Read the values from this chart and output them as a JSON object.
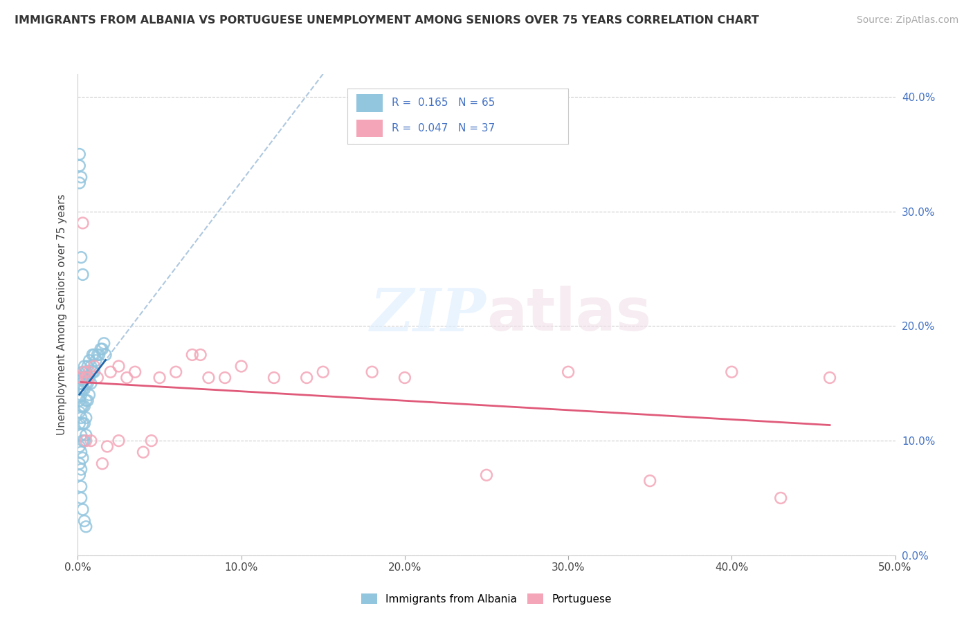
{
  "title": "IMMIGRANTS FROM ALBANIA VS PORTUGUESE UNEMPLOYMENT AMONG SENIORS OVER 75 YEARS CORRELATION CHART",
  "source": "Source: ZipAtlas.com",
  "ylabel": "Unemployment Among Seniors over 75 years",
  "xlim": [
    0.0,
    0.5
  ],
  "ylim": [
    0.0,
    0.42
  ],
  "xticks": [
    0.0,
    0.1,
    0.2,
    0.3,
    0.4,
    0.5
  ],
  "yticks": [
    0.0,
    0.1,
    0.2,
    0.3,
    0.4
  ],
  "color_albania": "#92c5de",
  "color_portuguese": "#f4a6b8",
  "trendline_albania_color": "#2166ac",
  "trendline_portuguese_color": "#e05a7a",
  "dashed_color": "#aec8e0",
  "watermark": "ZIPatlas",
  "albania_x": [
    0.001,
    0.001,
    0.001,
    0.001,
    0.001,
    0.001,
    0.001,
    0.001,
    0.002,
    0.002,
    0.002,
    0.002,
    0.002,
    0.002,
    0.002,
    0.002,
    0.002,
    0.003,
    0.003,
    0.003,
    0.003,
    0.003,
    0.003,
    0.003,
    0.004,
    0.004,
    0.004,
    0.004,
    0.004,
    0.004,
    0.005,
    0.005,
    0.005,
    0.005,
    0.005,
    0.006,
    0.006,
    0.006,
    0.007,
    0.007,
    0.007,
    0.008,
    0.008,
    0.009,
    0.009,
    0.01,
    0.01,
    0.011,
    0.012,
    0.013,
    0.014,
    0.015,
    0.016,
    0.017,
    0.002,
    0.003,
    0.004,
    0.005,
    0.001,
    0.002,
    0.001,
    0.001,
    0.002,
    0.003
  ],
  "albania_y": [
    0.155,
    0.145,
    0.135,
    0.125,
    0.115,
    0.095,
    0.08,
    0.07,
    0.155,
    0.15,
    0.14,
    0.13,
    0.12,
    0.105,
    0.09,
    0.075,
    0.06,
    0.16,
    0.155,
    0.145,
    0.13,
    0.115,
    0.1,
    0.085,
    0.165,
    0.155,
    0.145,
    0.13,
    0.115,
    0.1,
    0.16,
    0.15,
    0.135,
    0.12,
    0.105,
    0.165,
    0.15,
    0.135,
    0.17,
    0.155,
    0.14,
    0.165,
    0.15,
    0.175,
    0.16,
    0.175,
    0.16,
    0.17,
    0.175,
    0.175,
    0.18,
    0.18,
    0.185,
    0.175,
    0.05,
    0.04,
    0.03,
    0.025,
    0.35,
    0.33,
    0.34,
    0.325,
    0.26,
    0.245
  ],
  "portuguese_x": [
    0.002,
    0.003,
    0.004,
    0.005,
    0.006,
    0.007,
    0.01,
    0.012,
    0.015,
    0.02,
    0.025,
    0.03,
    0.035,
    0.04,
    0.05,
    0.06,
    0.07,
    0.08,
    0.1,
    0.12,
    0.15,
    0.2,
    0.25,
    0.3,
    0.35,
    0.4,
    0.43,
    0.46,
    0.005,
    0.008,
    0.018,
    0.025,
    0.045,
    0.075,
    0.09,
    0.14,
    0.18
  ],
  "portuguese_y": [
    0.155,
    0.29,
    0.16,
    0.155,
    0.155,
    0.16,
    0.165,
    0.155,
    0.08,
    0.16,
    0.165,
    0.155,
    0.16,
    0.09,
    0.155,
    0.16,
    0.175,
    0.155,
    0.165,
    0.155,
    0.16,
    0.155,
    0.07,
    0.16,
    0.065,
    0.16,
    0.05,
    0.155,
    0.1,
    0.1,
    0.095,
    0.1,
    0.1,
    0.175,
    0.155,
    0.155,
    0.16
  ]
}
